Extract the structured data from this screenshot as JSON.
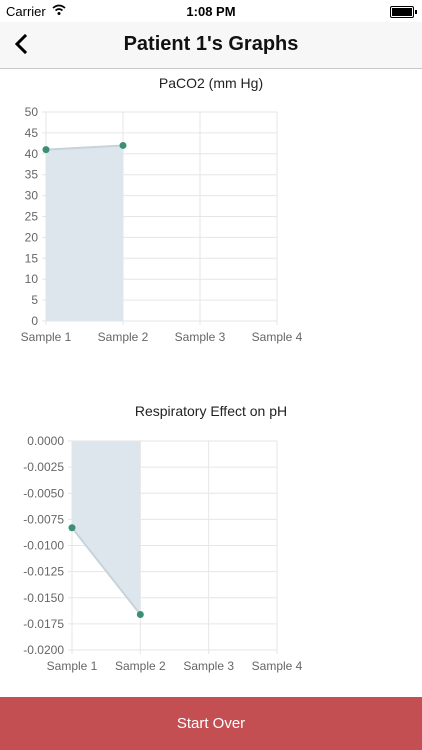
{
  "status_bar": {
    "carrier": "Carrier",
    "time": "1:08 PM"
  },
  "nav": {
    "title": "Patient 1's Graphs",
    "back_icon": "chevron-left-icon"
  },
  "colors": {
    "accent": "#c44f52",
    "point": "#3d8f74",
    "area": "#dde6ec",
    "grid": "#e6e6e6"
  },
  "chart_data": [
    {
      "type": "area",
      "title": "PaCO2 (mm Hg)",
      "categories": [
        "Sample 1",
        "Sample 2",
        "Sample 3",
        "Sample 4"
      ],
      "values": [
        41,
        42,
        null,
        null
      ],
      "ylim": [
        0,
        50
      ],
      "yticks": [
        "0",
        "5",
        "10",
        "15",
        "20",
        "25",
        "30",
        "35",
        "40",
        "45",
        "50"
      ],
      "grid": true
    },
    {
      "type": "area",
      "title": "Respiratory Effect on pH",
      "categories": [
        "Sample 1",
        "Sample 2",
        "Sample 3",
        "Sample 4"
      ],
      "values": [
        -0.0083,
        -0.0166,
        null,
        null
      ],
      "ylim": [
        -0.02,
        0
      ],
      "yticks": [
        "-0.0200",
        "-0.0175",
        "-0.0150",
        "-0.0125",
        "-0.0100",
        "-0.0075",
        "-0.0050",
        "-0.0025",
        "0.0000"
      ],
      "grid": true
    }
  ],
  "footer": {
    "button_label": "Start Over"
  }
}
